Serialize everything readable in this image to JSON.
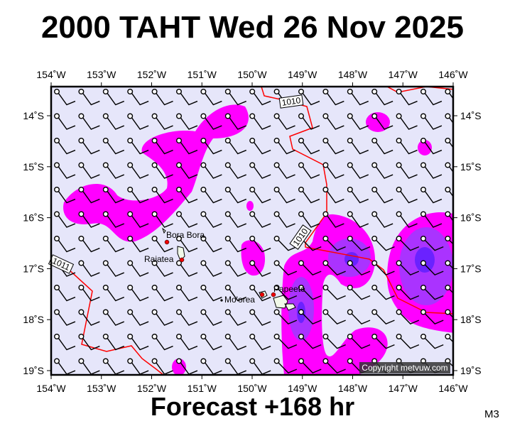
{
  "title": "2000 TAHT Wed 26 Nov 2025",
  "footer": "Forecast +168 hr",
  "model": "M3",
  "copyright": "Copyright metvuw.com",
  "axes": {
    "lon_labels": [
      "154˚W",
      "153˚W",
      "152˚W",
      "151˚W",
      "150˚W",
      "149˚W",
      "148˚W",
      "147˚W",
      "146˚W"
    ],
    "lat_labels": [
      "14˚S",
      "15˚S",
      "16˚S",
      "17˚S",
      "18˚S",
      "19˚S"
    ]
  },
  "places": [
    {
      "name": "Bora Bora"
    },
    {
      "name": "Raiatea"
    },
    {
      "name": "Mo'orea"
    },
    {
      "name": "Papeete"
    }
  ],
  "isobar_labels": [
    "1010",
    "1010",
    "1011"
  ],
  "colors": {
    "background": "#e6e6fa",
    "rain_light": "#ff00ff",
    "rain_medium": "#aa33ff",
    "rain_heavy": "#6a22ff",
    "isobar": "#ff0000",
    "barb": "#000000"
  }
}
